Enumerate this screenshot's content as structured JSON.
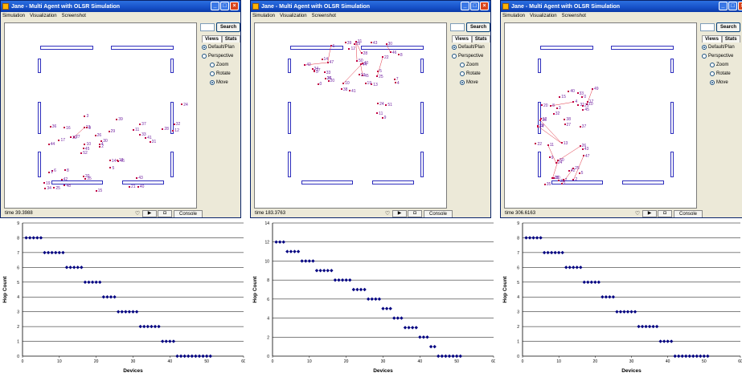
{
  "window": {
    "title": "Jane - Multi Agent with OLSR Simulation",
    "menu": [
      "Simulation",
      "Visualization",
      "Screenshot"
    ],
    "search_label": "Search",
    "tabs": [
      "Views",
      "Stats"
    ],
    "options": [
      "Default/Plan",
      "Perspective",
      "Zoom",
      "Rotate",
      "Move"
    ],
    "console_label": "Console",
    "windows": [
      {
        "time": "time 39.3988",
        "view_selected": "Default/Plan",
        "mode_selected": "Move",
        "nodes": [
          "40",
          "44",
          "37",
          "52",
          "29",
          "25",
          "23",
          "26",
          "6",
          "27",
          "19",
          "42",
          "9",
          "30",
          "46",
          "36",
          "3",
          "31",
          "14",
          "33",
          "45",
          "20",
          "10",
          "16",
          "39",
          "8",
          "21",
          "43",
          "13",
          "15",
          "22",
          "17",
          "5",
          "48",
          "41",
          "4",
          "34",
          "35",
          "2",
          "1",
          "11",
          "24",
          "32",
          "12",
          "28"
        ]
      },
      {
        "time": "time 183.3763",
        "view_selected": "Default/Plan",
        "mode_selected": "Move",
        "nodes": [
          "0",
          "30",
          "6",
          "46",
          "45",
          "47",
          "33",
          "26",
          "8",
          "22",
          "34",
          "31",
          "25",
          "44",
          "41",
          "39",
          "4",
          "42",
          "36",
          "38",
          "13",
          "29",
          "12",
          "40",
          "50",
          "10",
          "27",
          "43",
          "28",
          "5",
          "14",
          "20",
          "19",
          "23",
          "7",
          "3",
          "51",
          "11",
          "24",
          "9"
        ]
      },
      {
        "time": "time 306.6163",
        "view_selected": "Default/Plan",
        "mode_selected": "Move",
        "nodes": [
          "24",
          "50",
          "40",
          "35",
          "15",
          "28",
          "49",
          "17",
          "42",
          "16",
          "20",
          "31",
          "10",
          "13",
          "12",
          "2",
          "11",
          "22",
          "5",
          "26",
          "45",
          "38",
          "36",
          "47",
          "9",
          "7",
          "3",
          "32",
          "30",
          "21",
          "14",
          "8",
          "1",
          "37",
          "4",
          "25",
          "43",
          "0",
          "33",
          "27",
          "29"
        ]
      }
    ]
  },
  "charts": [
    {
      "type": "scatter",
      "xlabel": "Devices",
      "ylabel": "Hop Count",
      "xlim": [
        0,
        60
      ],
      "ylim": [
        0,
        9
      ],
      "xticks": [
        0,
        10,
        20,
        30,
        40,
        50,
        60
      ],
      "yticks": [
        0,
        1,
        2,
        3,
        4,
        5,
        6,
        7,
        8,
        9
      ],
      "groups": [
        {
          "y": 8,
          "from": 1,
          "to": 5
        },
        {
          "y": 7,
          "from": 6,
          "to": 11
        },
        {
          "y": 6,
          "from": 12,
          "to": 16
        },
        {
          "y": 5,
          "from": 17,
          "to": 21
        },
        {
          "y": 4,
          "from": 22,
          "to": 25
        },
        {
          "y": 3,
          "from": 26,
          "to": 31
        },
        {
          "y": 2,
          "from": 32,
          "to": 37
        },
        {
          "y": 1,
          "from": 38,
          "to": 41
        },
        {
          "y": 0,
          "from": 42,
          "to": 51
        }
      ]
    },
    {
      "type": "scatter",
      "xlabel": "Devices",
      "ylabel": "Hop Count",
      "xlim": [
        0,
        60
      ],
      "ylim": [
        0,
        14
      ],
      "xticks": [
        0,
        10,
        20,
        30,
        40,
        50,
        60
      ],
      "yticks": [
        0,
        2,
        4,
        6,
        8,
        10,
        12,
        14
      ],
      "groups": [
        {
          "y": 12,
          "from": 1,
          "to": 3
        },
        {
          "y": 11,
          "from": 4,
          "to": 7
        },
        {
          "y": 10,
          "from": 8,
          "to": 11
        },
        {
          "y": 9,
          "from": 12,
          "to": 16
        },
        {
          "y": 8,
          "from": 17,
          "to": 21
        },
        {
          "y": 7,
          "from": 22,
          "to": 25
        },
        {
          "y": 6,
          "from": 26,
          "to": 29
        },
        {
          "y": 5,
          "from": 30,
          "to": 32
        },
        {
          "y": 4,
          "from": 33,
          "to": 35
        },
        {
          "y": 3,
          "from": 36,
          "to": 39
        },
        {
          "y": 2,
          "from": 40,
          "to": 42
        },
        {
          "y": 1,
          "from": 43,
          "to": 44
        },
        {
          "y": 0,
          "from": 45,
          "to": 51
        }
      ]
    },
    {
      "type": "scatter",
      "xlabel": "Devices",
      "ylabel": "Hop Count",
      "xlim": [
        0,
        60
      ],
      "ylim": [
        0,
        9
      ],
      "xticks": [
        0,
        10,
        20,
        30,
        40,
        50,
        60
      ],
      "yticks": [
        0,
        1,
        2,
        3,
        4,
        5,
        6,
        7,
        8,
        9
      ],
      "groups": [
        {
          "y": 8,
          "from": 1,
          "to": 5
        },
        {
          "y": 7,
          "from": 6,
          "to": 11
        },
        {
          "y": 6,
          "from": 12,
          "to": 16
        },
        {
          "y": 5,
          "from": 17,
          "to": 21
        },
        {
          "y": 4,
          "from": 22,
          "to": 25
        },
        {
          "y": 3,
          "from": 26,
          "to": 31
        },
        {
          "y": 2,
          "from": 32,
          "to": 37
        },
        {
          "y": 1,
          "from": 38,
          "to": 41
        },
        {
          "y": 0,
          "from": 42,
          "to": 51
        }
      ]
    }
  ]
}
